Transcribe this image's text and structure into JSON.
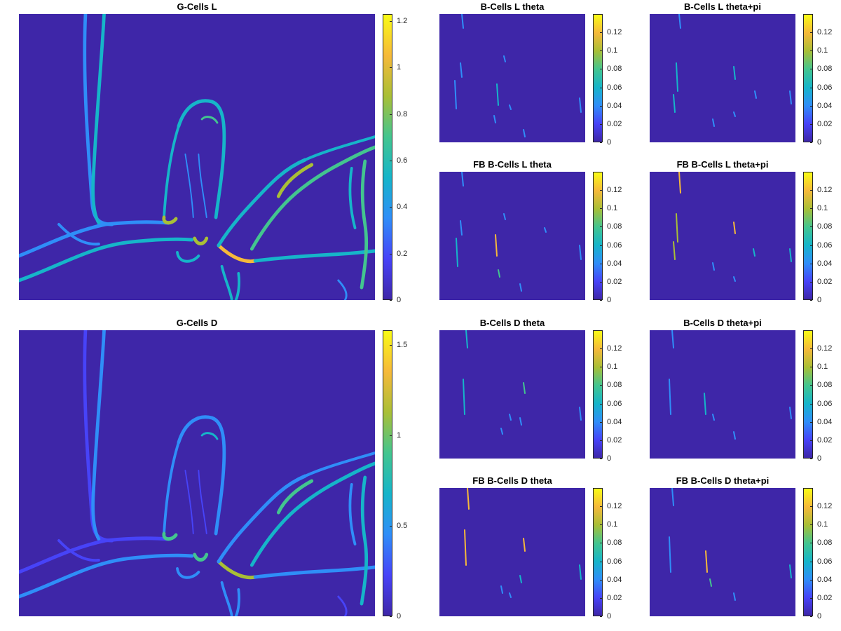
{
  "colormap": [
    "#3e26a8",
    "#4743f8",
    "#2f8ef8",
    "#16b5c9",
    "#43c58f",
    "#a9bf36",
    "#f6b93a",
    "#f9fb15"
  ],
  "chart_data": [
    {
      "id": "gl",
      "type": "heatmap",
      "title": "G-Cells L",
      "clim": [
        0,
        1.23
      ],
      "colorbar_ticks": [
        "0",
        "0.2",
        "0.4",
        "0.6",
        "0.8",
        "1",
        "1.2"
      ],
      "colorbar_values": [
        0,
        0.2,
        0.4,
        0.6,
        0.8,
        1.0,
        1.2
      ]
    },
    {
      "id": "bl_t",
      "type": "heatmap",
      "title": "B-Cells L theta",
      "clim": [
        0,
        0.14
      ],
      "colorbar_ticks": [
        "0",
        "0.02",
        "0.04",
        "0.06",
        "0.08",
        "0.1",
        "0.12"
      ],
      "colorbar_values": [
        0,
        0.02,
        0.04,
        0.06,
        0.08,
        0.1,
        0.12
      ]
    },
    {
      "id": "bl_tp",
      "type": "heatmap",
      "title": "B-Cells L theta+pi",
      "clim": [
        0,
        0.14
      ],
      "colorbar_ticks": [
        "0",
        "0.02",
        "0.04",
        "0.06",
        "0.08",
        "0.1",
        "0.12"
      ],
      "colorbar_values": [
        0,
        0.02,
        0.04,
        0.06,
        0.08,
        0.1,
        0.12
      ]
    },
    {
      "id": "fbl_t",
      "type": "heatmap",
      "title": "FB B-Cells L theta",
      "clim": [
        0,
        0.14
      ],
      "colorbar_ticks": [
        "0",
        "0.02",
        "0.04",
        "0.06",
        "0.08",
        "0.1",
        "0.12"
      ],
      "colorbar_values": [
        0,
        0.02,
        0.04,
        0.06,
        0.08,
        0.1,
        0.12
      ]
    },
    {
      "id": "fbl_tp",
      "type": "heatmap",
      "title": "FB B-Cells L theta+pi",
      "clim": [
        0,
        0.14
      ],
      "colorbar_ticks": [
        "0",
        "0.02",
        "0.04",
        "0.06",
        "0.08",
        "0.1",
        "0.12"
      ],
      "colorbar_values": [
        0,
        0.02,
        0.04,
        0.06,
        0.08,
        0.1,
        0.12
      ]
    },
    {
      "id": "gd",
      "type": "heatmap",
      "title": "G-Cells D",
      "clim": [
        0,
        1.58
      ],
      "colorbar_ticks": [
        "0",
        "0.5",
        "1",
        "1.5"
      ],
      "colorbar_values": [
        0,
        0.5,
        1.0,
        1.5
      ]
    },
    {
      "id": "bd_t",
      "type": "heatmap",
      "title": "B-Cells D theta",
      "clim": [
        0,
        0.14
      ],
      "colorbar_ticks": [
        "0",
        "0.02",
        "0.04",
        "0.06",
        "0.08",
        "0.1",
        "0.12"
      ],
      "colorbar_values": [
        0,
        0.02,
        0.04,
        0.06,
        0.08,
        0.1,
        0.12
      ]
    },
    {
      "id": "bd_tp",
      "type": "heatmap",
      "title": "B-Cells D theta+pi",
      "clim": [
        0,
        0.14
      ],
      "colorbar_ticks": [
        "0",
        "0.02",
        "0.04",
        "0.06",
        "0.08",
        "0.1",
        "0.12"
      ],
      "colorbar_values": [
        0,
        0.02,
        0.04,
        0.06,
        0.08,
        0.1,
        0.12
      ]
    },
    {
      "id": "fbd_t",
      "type": "heatmap",
      "title": "FB B-Cells D theta",
      "clim": [
        0,
        0.14
      ],
      "colorbar_ticks": [
        "0",
        "0.02",
        "0.04",
        "0.06",
        "0.08",
        "0.1",
        "0.12"
      ],
      "colorbar_values": [
        0,
        0.02,
        0.04,
        0.06,
        0.08,
        0.1,
        0.12
      ]
    },
    {
      "id": "fbd_tp",
      "type": "heatmap",
      "title": "FB B-Cells D theta+pi",
      "clim": [
        0,
        0.14
      ],
      "colorbar_ticks": [
        "0",
        "0.02",
        "0.04",
        "0.06",
        "0.08",
        "0.1",
        "0.12"
      ],
      "colorbar_values": [
        0,
        0.02,
        0.04,
        0.06,
        0.08,
        0.1,
        0.12
      ]
    }
  ]
}
